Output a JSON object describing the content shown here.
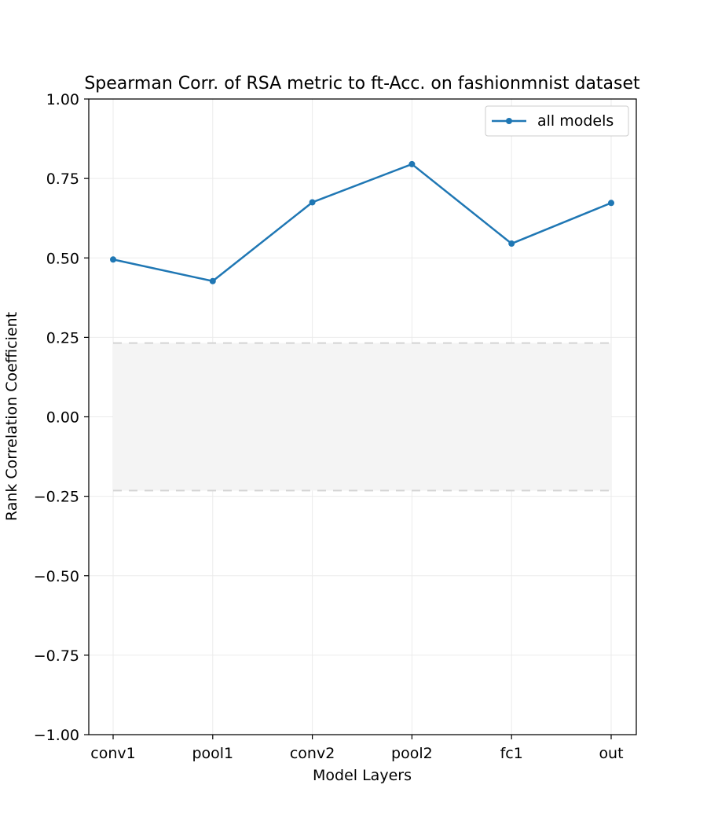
{
  "chart_data": {
    "type": "line",
    "title": "Spearman Corr. of RSA metric to ft-Acc. on fashionmnist dataset",
    "xlabel": "Model Layers",
    "ylabel": "Rank Correlation Coefficient",
    "categories": [
      "conv1",
      "pool1",
      "conv2",
      "pool2",
      "fc1",
      "out"
    ],
    "ylim": [
      -1.0,
      1.0
    ],
    "yticks": [
      -1.0,
      -0.75,
      -0.5,
      -0.25,
      0.0,
      0.25,
      0.5,
      0.75,
      1.0
    ],
    "ytick_labels": [
      "−1.00",
      "−0.75",
      "−0.50",
      "−0.25",
      "0.00",
      "0.25",
      "0.50",
      "0.75",
      "1.00"
    ],
    "series": [
      {
        "name": "all models",
        "color": "#1f77b4",
        "values": [
          0.495,
          0.427,
          0.675,
          0.795,
          0.545,
          0.673
        ]
      }
    ],
    "significance_band": {
      "lower": -0.232,
      "upper": 0.232,
      "fill_color": "#f4f4f4",
      "edge_color": "#d3d3d3"
    },
    "grid": true,
    "legend_position": "top-right"
  }
}
